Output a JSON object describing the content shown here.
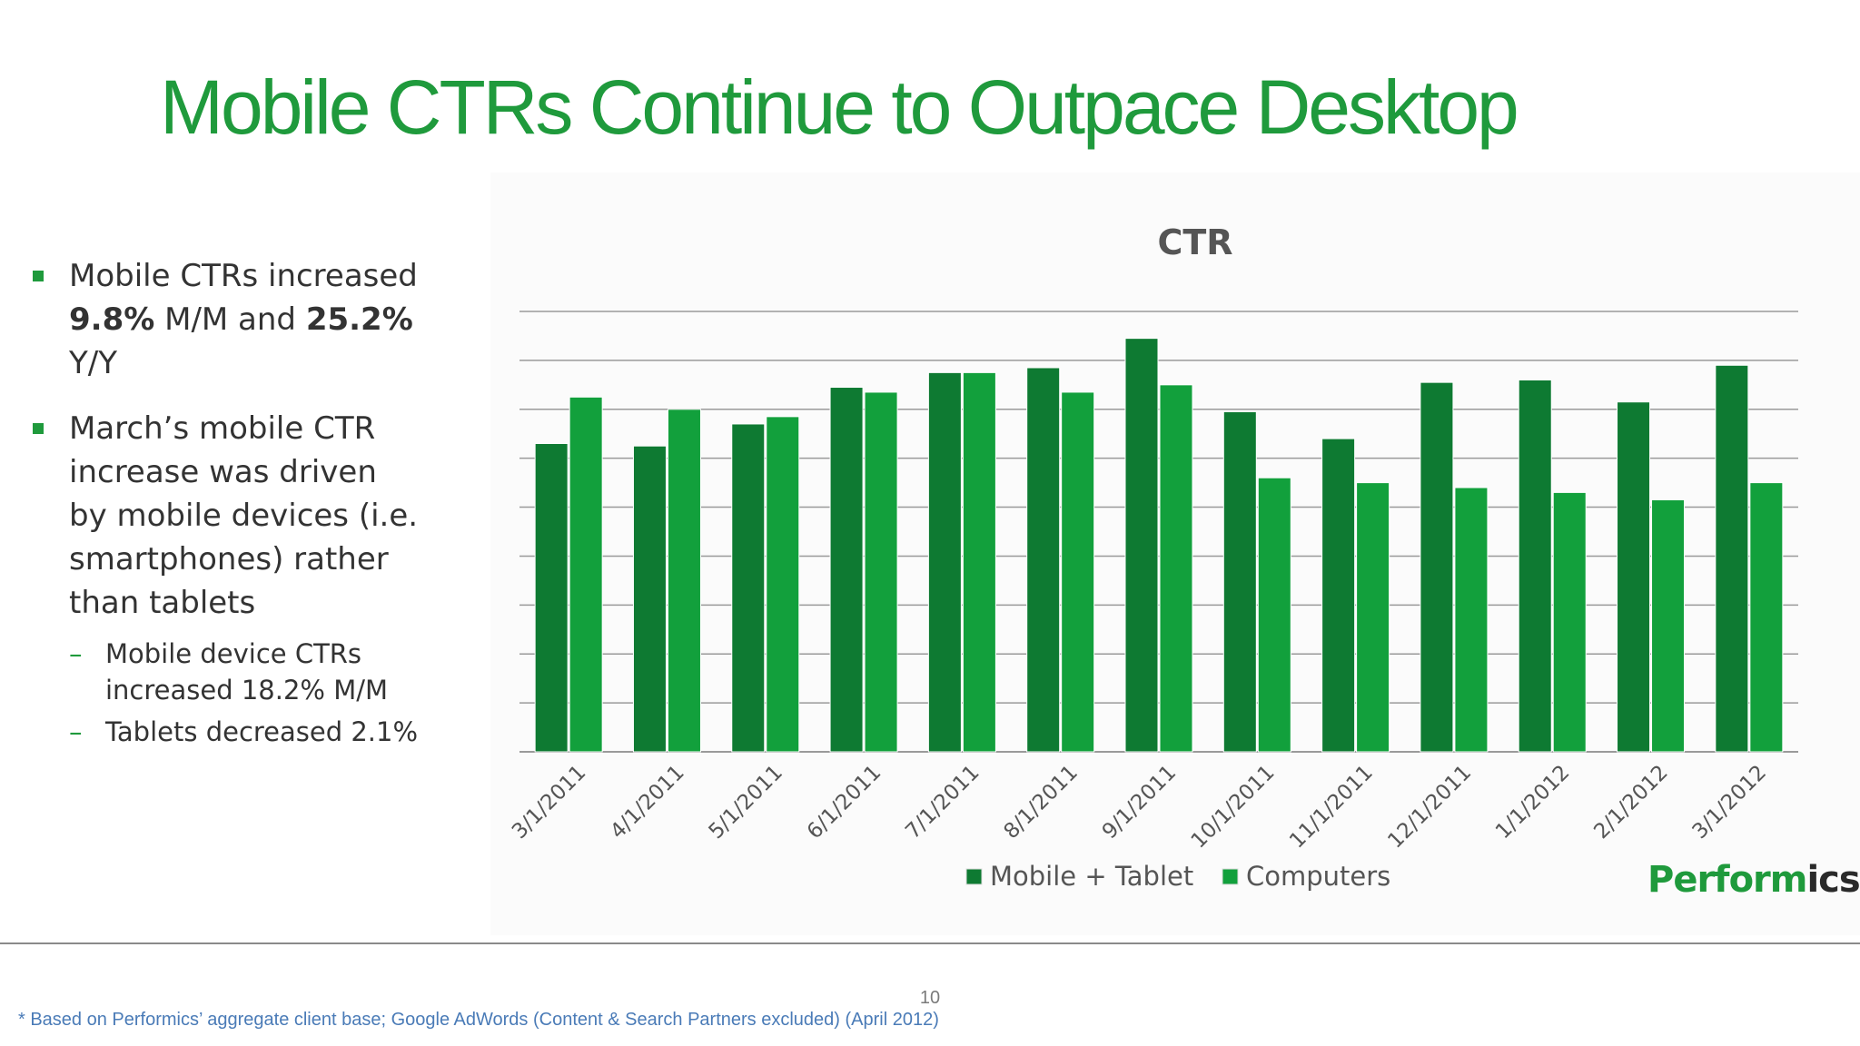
{
  "slide": {
    "title": "Mobile CTRs Continue to Outpace Desktop",
    "bullets": [
      {
        "pre": "Mobile CTRs increased ",
        "bold1": "9.8%",
        "mid": " M/M and ",
        "bold2": "25.2%",
        "post": " Y/Y"
      },
      {
        "text": "March’s mobile CTR increase was driven by mobile devices (i.e. smartphones) rather than tablets"
      }
    ],
    "sub_bullets": [
      "Mobile device CTRs increased 18.2% M/M",
      "Tablets decreased 2.1%"
    ],
    "sub_dash": "–",
    "logo": {
      "main": "Perform",
      "accent": "ics"
    },
    "page_number": "10",
    "footnote": "* Based on Performics’ aggregate client base; Google AdWords (Content & Search Partners excluded) (April 2012)"
  },
  "chart_data": {
    "type": "bar",
    "title": "CTR",
    "categories": [
      "3/1/2011",
      "4/1/2011",
      "5/1/2011",
      "6/1/2011",
      "7/1/2011",
      "8/1/2011",
      "9/1/2011",
      "10/1/2011",
      "11/1/2011",
      "12/1/2011",
      "1/1/2012",
      "2/1/2012",
      "3/1/2012"
    ],
    "series": [
      {
        "name": "Mobile + Tablet",
        "color": "#0e7a32",
        "values": [
          6.3,
          6.25,
          6.7,
          7.45,
          7.75,
          7.85,
          8.45,
          6.95,
          6.4,
          7.55,
          7.6,
          7.15,
          7.9
        ]
      },
      {
        "name": "Computers",
        "color": "#12a03c",
        "values": [
          7.25,
          7.0,
          6.85,
          7.35,
          7.75,
          7.35,
          7.5,
          5.6,
          5.5,
          5.4,
          5.3,
          5.15,
          5.5
        ]
      }
    ],
    "ylim": [
      0,
      9
    ],
    "gridlines": 9,
    "y_tick_labels": false,
    "legend_position": "bottom"
  }
}
